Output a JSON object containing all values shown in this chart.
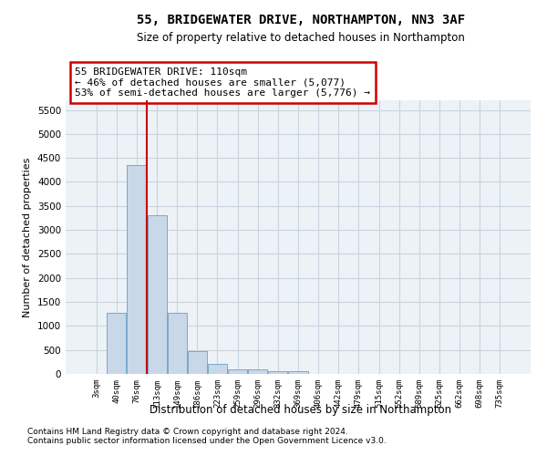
{
  "title": "55, BRIDGEWATER DRIVE, NORTHAMPTON, NN3 3AF",
  "subtitle": "Size of property relative to detached houses in Northampton",
  "xlabel": "Distribution of detached houses by size in Northampton",
  "ylabel": "Number of detached properties",
  "footnote1": "Contains HM Land Registry data © Crown copyright and database right 2024.",
  "footnote2": "Contains public sector information licensed under the Open Government Licence v3.0.",
  "annotation_line1": "55 BRIDGEWATER DRIVE: 110sqm",
  "annotation_line2": "← 46% of detached houses are smaller (5,077)",
  "annotation_line3": "53% of semi-detached houses are larger (5,776) →",
  "bar_color": "#c8d8e8",
  "bar_edge_color": "#7aa8cc",
  "red_line_color": "#cc0000",
  "grid_color": "#c8d4e0",
  "background_color": "#edf2f7",
  "x_labels": [
    "3sqm",
    "40sqm",
    "76sqm",
    "113sqm",
    "149sqm",
    "186sqm",
    "223sqm",
    "259sqm",
    "296sqm",
    "332sqm",
    "369sqm",
    "406sqm",
    "442sqm",
    "479sqm",
    "515sqm",
    "552sqm",
    "589sqm",
    "625sqm",
    "662sqm",
    "698sqm",
    "735sqm"
  ],
  "bar_values": [
    0,
    1270,
    4350,
    3300,
    1280,
    480,
    200,
    90,
    90,
    60,
    60,
    0,
    0,
    0,
    0,
    0,
    0,
    0,
    0,
    0,
    0
  ],
  "red_line_x": 2.5,
  "ylim": [
    0,
    5700
  ],
  "yticks": [
    0,
    500,
    1000,
    1500,
    2000,
    2500,
    3000,
    3500,
    4000,
    4500,
    5000,
    5500
  ]
}
